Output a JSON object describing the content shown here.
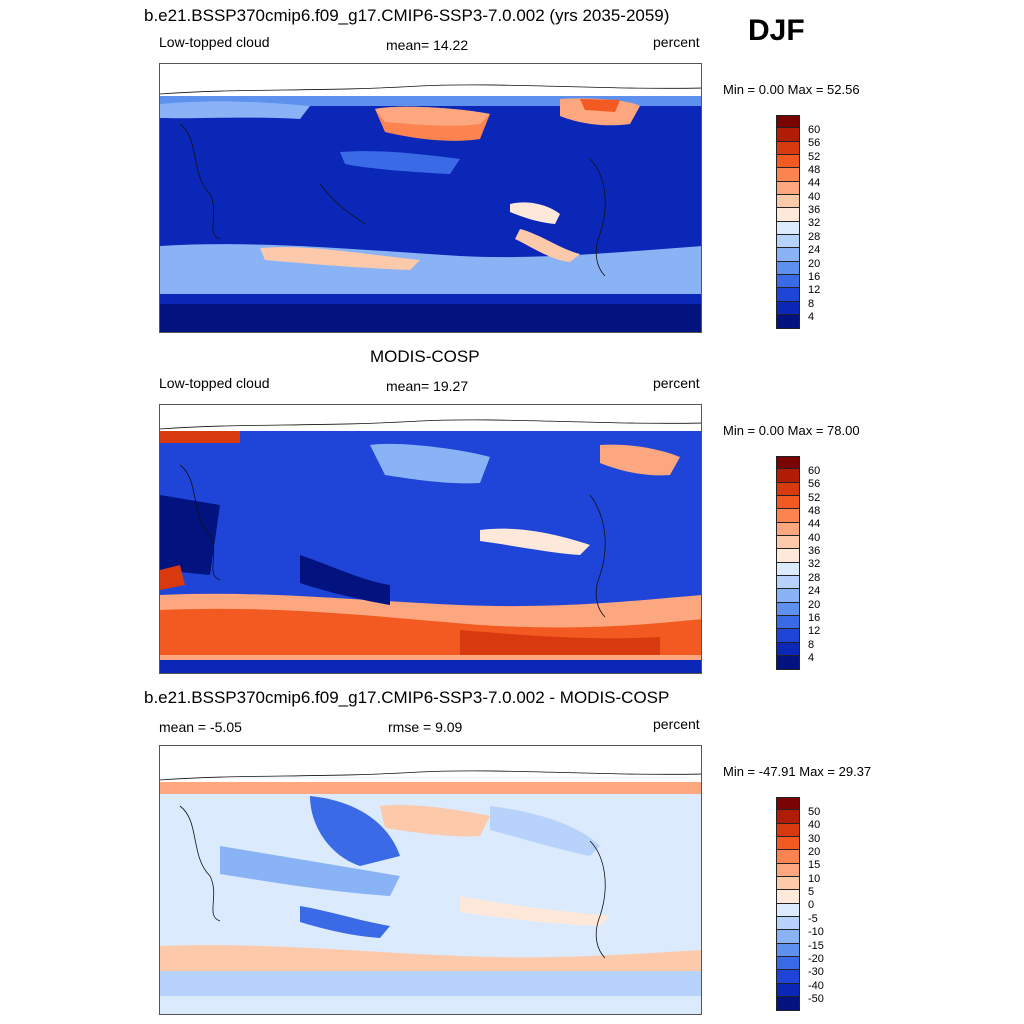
{
  "season": "DJF",
  "panels": [
    {
      "id": "model",
      "title": "b.e21.BSSP370cmip6.f09_g17.CMIP6-SSP3-7.0.002 (yrs 2035-2059)",
      "left_label": "Low-topped cloud",
      "center_label": "mean=  14.22",
      "right_label": "percent",
      "minmax": "Min =   0.00 Max =  52.56",
      "colorbar": {
        "ticks": [
          "60",
          "56",
          "52",
          "48",
          "44",
          "40",
          "36",
          "32",
          "28",
          "24",
          "20",
          "16",
          "12",
          "8",
          "4"
        ],
        "colors": [
          "#7a0403",
          "#b01c06",
          "#d9390f",
          "#f25a22",
          "#fb8451",
          "#fca77f",
          "#fdc9ab",
          "#fde8d9",
          "#dbeafc",
          "#b8d3fb",
          "#8ab3f6",
          "#5e90ee",
          "#3a6ae6",
          "#1e45d8",
          "#0b27b8",
          "#02137f"
        ]
      }
    },
    {
      "id": "obs",
      "title": "MODIS-COSP",
      "left_label": "Low-topped cloud",
      "center_label": "mean=  19.27",
      "right_label": "percent",
      "minmax": "Min =   0.00 Max =  78.00",
      "colorbar": {
        "ticks": [
          "60",
          "56",
          "52",
          "48",
          "44",
          "40",
          "36",
          "32",
          "28",
          "24",
          "20",
          "16",
          "12",
          "8",
          "4"
        ],
        "colors": [
          "#7a0403",
          "#b01c06",
          "#d9390f",
          "#f25a22",
          "#fb8451",
          "#fca77f",
          "#fdc9ab",
          "#fde8d9",
          "#dbeafc",
          "#b8d3fb",
          "#8ab3f6",
          "#5e90ee",
          "#3a6ae6",
          "#1e45d8",
          "#0b27b8",
          "#02137f"
        ]
      }
    },
    {
      "id": "diff",
      "title": "b.e21.BSSP370cmip6.f09_g17.CMIP6-SSP3-7.0.002 - MODIS-COSP",
      "left_label": "mean =  -5.05",
      "center_label": "rmse =    9.09",
      "right_label": "percent",
      "minmax": "Min = -47.91 Max =  29.37",
      "colorbar": {
        "ticks": [
          "50",
          "40",
          "30",
          "20",
          "15",
          "10",
          "5",
          "0",
          "-5",
          "-10",
          "-15",
          "-20",
          "-30",
          "-40",
          "-50"
        ],
        "colors": [
          "#7a0403",
          "#b01c06",
          "#d9390f",
          "#f25a22",
          "#fb8451",
          "#fca77f",
          "#fdc9ab",
          "#fde8d9",
          "#dbeafc",
          "#b8d3fb",
          "#8ab3f6",
          "#5e90ee",
          "#3a6ae6",
          "#1e45d8",
          "#0b27b8",
          "#02137f"
        ]
      }
    }
  ]
}
